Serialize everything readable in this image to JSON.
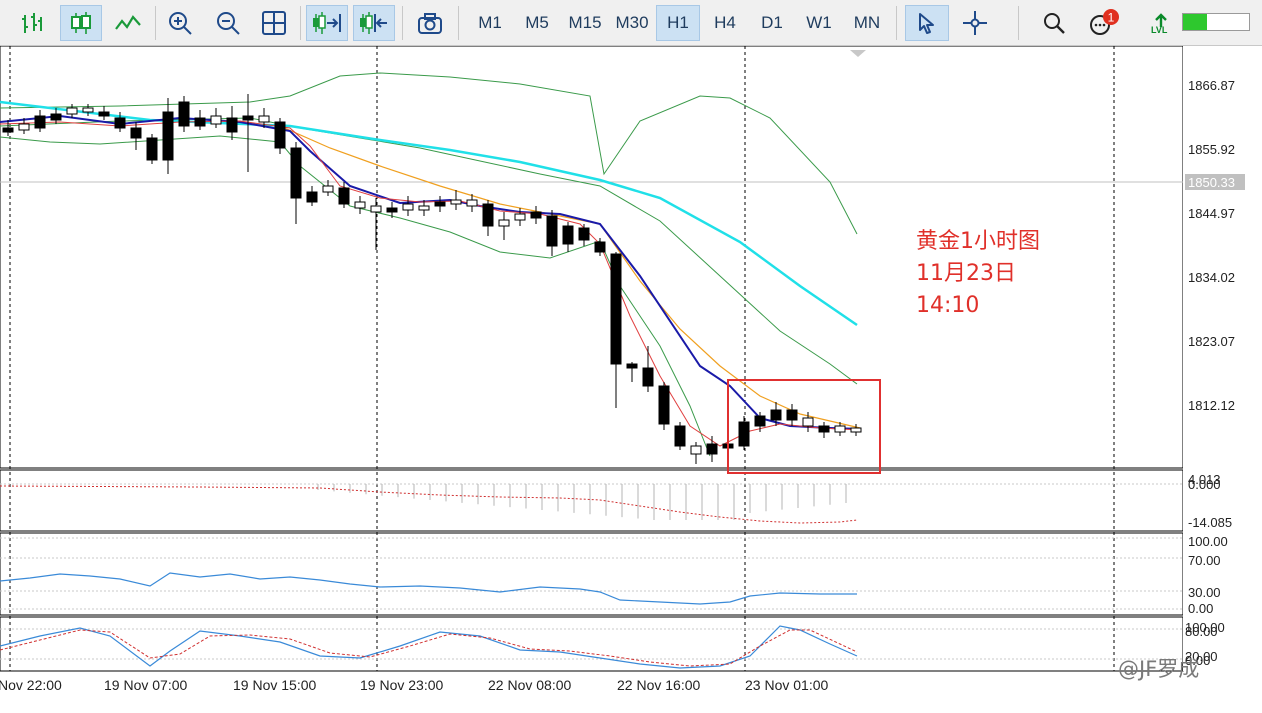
{
  "toolbar": {
    "timeframes": [
      "M1",
      "M5",
      "M15",
      "M30",
      "H1",
      "H4",
      "D1",
      "W1",
      "MN"
    ],
    "active_timeframe": "H1",
    "notification_count": "1",
    "lvl_label": "LVL"
  },
  "price_axis": {
    "labels": [
      "1866.87",
      "1855.92",
      "1844.97",
      "1834.02",
      "1823.07",
      "1812.12"
    ],
    "current_price": "1850.33"
  },
  "indicator1": {
    "top_label": "4.013",
    "zero_label": "0.000",
    "bottom_label": "-14.085"
  },
  "indicator2": {
    "labels": [
      "100.00",
      "70.00",
      "30.00",
      "0.00"
    ]
  },
  "indicator3": {
    "labels": [
      "100.00",
      "80.00",
      "20.00",
      "0.00"
    ]
  },
  "time_axis": [
    "Nov 22:00",
    "19 Nov 07:00",
    "19 Nov 15:00",
    "19 Nov 23:00",
    "22 Nov 08:00",
    "22 Nov 16:00",
    "23 Nov 01:00"
  ],
  "annotation": {
    "line1": "黄金1小时图",
    "line2": "11月23日",
    "line3": "14:10"
  },
  "watermark": "@JF罗成",
  "colors": {
    "bull": "#ffffff",
    "bear": "#000000",
    "ma_fast": "#e04040",
    "ma_mid": "#1a1aa8",
    "ma_orange": "#f0a020",
    "ma_cyan": "#20e0e8",
    "bollinger": "#3a9a4a",
    "highlight": "#e03030"
  }
}
